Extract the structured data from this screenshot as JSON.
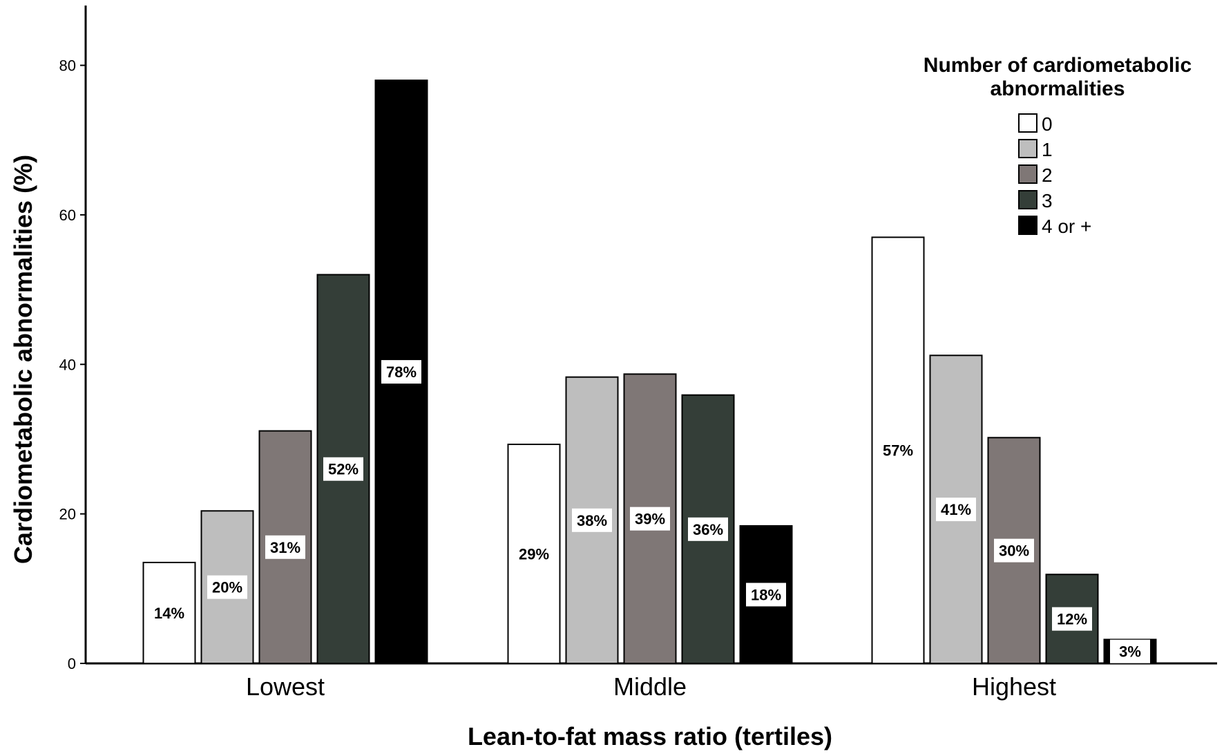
{
  "chart_data": {
    "type": "bar",
    "title": "",
    "xlabel": "Lean-to-fat mass ratio (tertiles)",
    "ylabel": "Cardiometabolic abnormalities (%)",
    "ylim": [
      0,
      88
    ],
    "yticks": [
      0,
      20,
      40,
      60,
      80
    ],
    "grid": false,
    "categories": [
      "Lowest",
      "Middle",
      "Highest"
    ],
    "legend": {
      "title": "Number of cardiometabolic abnormalities",
      "title_lines": [
        "Number of cardiometabolic",
        "abnormalities"
      ],
      "placement": "top-right"
    },
    "series": [
      {
        "name": "0",
        "color": "#ffffff",
        "values": [
          13.5,
          29.3,
          57.0
        ],
        "labels": [
          "14%",
          "29%",
          "57%"
        ]
      },
      {
        "name": "1",
        "color": "#bebebe",
        "values": [
          20.4,
          38.3,
          41.2
        ],
        "labels": [
          "20%",
          "38%",
          "41%"
        ]
      },
      {
        "name": "2",
        "color": "#7f7776",
        "values": [
          31.1,
          38.7,
          30.2
        ],
        "labels": [
          "31%",
          "39%",
          "30%"
        ]
      },
      {
        "name": "3",
        "color": "#343e38",
        "values": [
          52.0,
          35.9,
          11.9
        ],
        "labels": [
          "52%",
          "36%",
          "12%"
        ]
      },
      {
        "name": "4 or +",
        "color": "#000000",
        "values": [
          78.0,
          18.4,
          3.2
        ],
        "labels": [
          "78%",
          "18%",
          "3%"
        ]
      }
    ]
  }
}
